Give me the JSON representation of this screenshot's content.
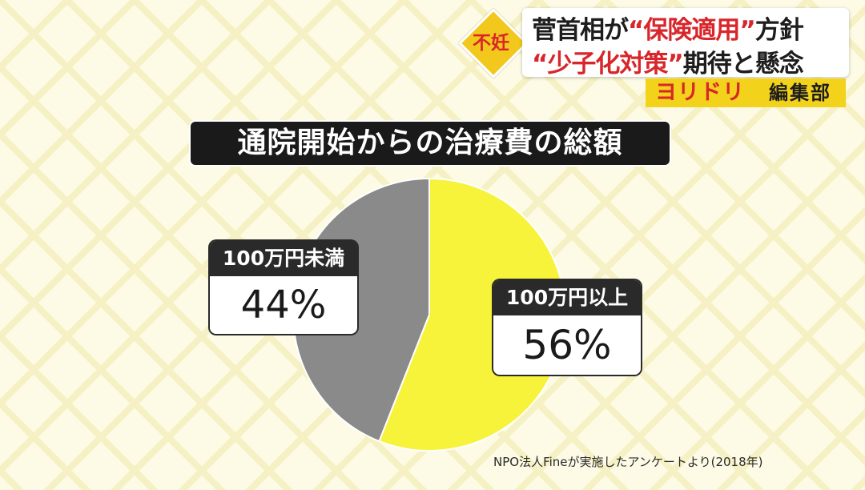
{
  "ticker": {
    "badge": "不妊",
    "headline_line1_pre": "菅首相が",
    "headline_line1_hl": "“保険適用”",
    "headline_line1_post": "方針",
    "headline_line2_hl": "“少子化対策”",
    "headline_line2_post": "期待と懸念",
    "program_name": "ヨリドリ",
    "program_dept": "編集部"
  },
  "colors": {
    "slice_over": "#f6f33a",
    "slice_under": "#8a8a8a",
    "accent_red": "#d8262a"
  },
  "chart_data": {
    "type": "pie",
    "title": "通院開始からの治療費の総額",
    "slices": [
      {
        "label": "100万円以上",
        "value": 56,
        "display": "56%"
      },
      {
        "label": "100万円未満",
        "value": 44,
        "display": "44%"
      }
    ],
    "start": "12 o'clock",
    "direction": "clockwise"
  },
  "source": "NPO法人Fineが実施したアンケートより(2018年)"
}
